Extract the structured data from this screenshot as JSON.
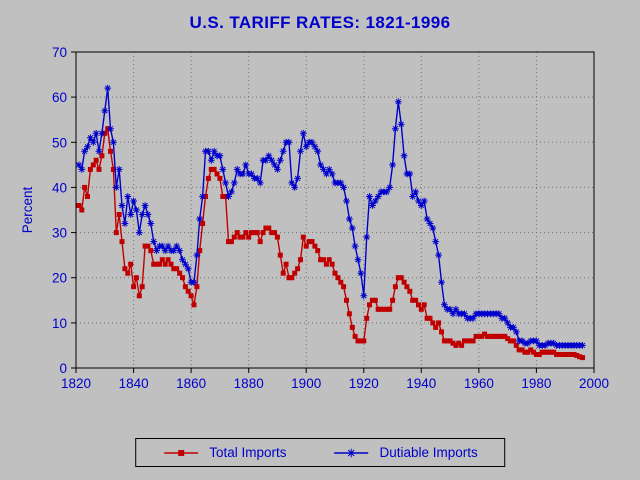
{
  "window": {
    "background": "#c0c0c0"
  },
  "chart_data": {
    "type": "line",
    "title": "U.S. TARIFF RATES: 1821-1996",
    "xlabel": "",
    "ylabel": "Percent",
    "xlim": [
      1820,
      2000
    ],
    "ylim": [
      0,
      70
    ],
    "xtick": 20,
    "ytick": 10,
    "grid": "dotted",
    "legend_position": "bottom-center",
    "title_color": "#0000cc",
    "axis_label_color": "#0000cc",
    "frame_color": "#000000",
    "x_start": 1821,
    "x_end": 1996,
    "x_step": 1,
    "series": [
      {
        "name": "Total Imports",
        "color": "#c00000",
        "marker": "square",
        "values": [
          36,
          35,
          40,
          38,
          44,
          45,
          46,
          44,
          47,
          52,
          53,
          48,
          44,
          30,
          34,
          28,
          22,
          21,
          23,
          18,
          20,
          16,
          18,
          27,
          27,
          26,
          23,
          23,
          23,
          24,
          23,
          24,
          23,
          22,
          22,
          21,
          20,
          18,
          17,
          16,
          14,
          18,
          26,
          32,
          38,
          42,
          44,
          44,
          43,
          42,
          38,
          38,
          28,
          28,
          29,
          30,
          29,
          29,
          30,
          29,
          30,
          30,
          30,
          28,
          30,
          31,
          31,
          30,
          30,
          29,
          25,
          21,
          23,
          20,
          20,
          21,
          22,
          24,
          29,
          27,
          28,
          28,
          27,
          26,
          24,
          24,
          23,
          24,
          23,
          21,
          20,
          19,
          18,
          15,
          12,
          9,
          7,
          6,
          6,
          6,
          11,
          14,
          15,
          15,
          13,
          13,
          13,
          13,
          13,
          15,
          18,
          20,
          20,
          19,
          18,
          17,
          15,
          15,
          14,
          13,
          14,
          11,
          11,
          10,
          9,
          10,
          8,
          6,
          6,
          6,
          5.5,
          5,
          5.5,
          5,
          6,
          6,
          6,
          6,
          7,
          7,
          7,
          7.5,
          7,
          7,
          7,
          7,
          7,
          7,
          7,
          6.5,
          6,
          6,
          5,
          4,
          4,
          3.5,
          3.5,
          4,
          3.5,
          3,
          3,
          3.5,
          3.5,
          3.5,
          3.5,
          3.5,
          3,
          3,
          3,
          3,
          3,
          3,
          3,
          2.8,
          2.5,
          2.3
        ]
      },
      {
        "name": "Dutiable Imports",
        "color": "#0000cc",
        "marker": "asterisk",
        "values": [
          45,
          44,
          48,
          49,
          51,
          50,
          52,
          48,
          52,
          57,
          62,
          53,
          50,
          40,
          44,
          36,
          32,
          38,
          34,
          37,
          35,
          30,
          34,
          36,
          34,
          32,
          28,
          26,
          27,
          27,
          26,
          27,
          26,
          26,
          27,
          26,
          24,
          23,
          22,
          19,
          19,
          25,
          33,
          38,
          48,
          48,
          46,
          48,
          47,
          47,
          44,
          41,
          38,
          39,
          41,
          44,
          43,
          43,
          45,
          43,
          43,
          42,
          42,
          41,
          46,
          46,
          47,
          46,
          45,
          44,
          46,
          48,
          50,
          50,
          41,
          40,
          42,
          48,
          52,
          49,
          50,
          50,
          49,
          48,
          45,
          44,
          43,
          44,
          43,
          41,
          41,
          41,
          40,
          37,
          33,
          31,
          27,
          24,
          21,
          16,
          29,
          38,
          36,
          37,
          38,
          39,
          39,
          39,
          40,
          45,
          53,
          59,
          54,
          47,
          43,
          43,
          38,
          39,
          37,
          36,
          37,
          33,
          32,
          31,
          28,
          25,
          19,
          14,
          13,
          13,
          12,
          13,
          12,
          12,
          12,
          11,
          11,
          11,
          12,
          12,
          12,
          12,
          12,
          12,
          12,
          12,
          12,
          11,
          11,
          10,
          9,
          9,
          8,
          6,
          6,
          5.5,
          5.5,
          6,
          6,
          6,
          5,
          5,
          5,
          5.5,
          5.5,
          5.5,
          5,
          5,
          5,
          5,
          5,
          5,
          5,
          5,
          5,
          5
        ]
      }
    ]
  }
}
